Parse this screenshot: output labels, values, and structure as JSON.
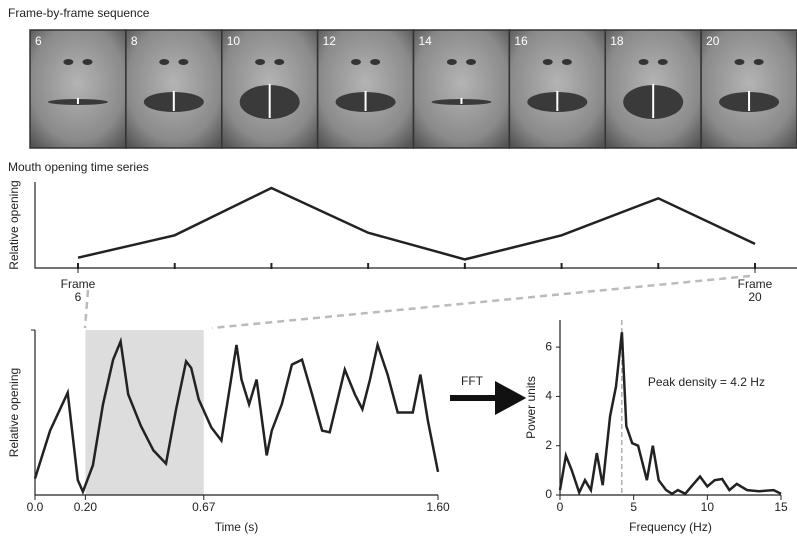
{
  "frames": {
    "title": "Frame-by-frame sequence",
    "labels": [
      "6",
      "8",
      "10",
      "12",
      "14",
      "16",
      "18",
      "20"
    ]
  },
  "chart_data": [
    {
      "type": "line",
      "title": "Mouth opening time series",
      "ylabel": "Relative opening",
      "x": [
        6,
        8,
        10,
        12,
        14,
        16,
        18,
        20
      ],
      "series": [
        {
          "color": "#222222",
          "values": [
            0.12,
            0.38,
            0.93,
            0.41,
            0.1,
            0.38,
            0.81,
            0.28
          ]
        }
      ],
      "ylim": [
        0,
        1
      ],
      "xticks": [
        {
          "value": 6,
          "label": "Frame 6"
        },
        {
          "value": 20,
          "label": "Frame 20"
        }
      ]
    },
    {
      "type": "line",
      "ylabel": "Relative opening",
      "xlabel": "Time (s)",
      "x": [
        0,
        0.06,
        0.13,
        0.17,
        0.19,
        0.23,
        0.27,
        0.31,
        0.34,
        0.37,
        0.42,
        0.47,
        0.52,
        0.56,
        0.6,
        0.62,
        0.65,
        0.7,
        0.74,
        0.8,
        0.82,
        0.85,
        0.88,
        0.92,
        0.94,
        0.98,
        1.02,
        1.06,
        1.1,
        1.14,
        1.17,
        1.23,
        1.27,
        1.3,
        1.33,
        1.36,
        1.4,
        1.44,
        1.48,
        1.5,
        1.53,
        1.56,
        1.6
      ],
      "series": [
        {
          "color": "#222222",
          "values": [
            0.1,
            0.39,
            0.62,
            0.09,
            0.02,
            0.18,
            0.55,
            0.82,
            0.93,
            0.61,
            0.42,
            0.27,
            0.19,
            0.52,
            0.81,
            0.77,
            0.58,
            0.41,
            0.33,
            0.91,
            0.7,
            0.55,
            0.7,
            0.24,
            0.39,
            0.55,
            0.79,
            0.82,
            0.61,
            0.39,
            0.38,
            0.76,
            0.61,
            0.52,
            0.7,
            0.91,
            0.73,
            0.5,
            0.5,
            0.5,
            0.73,
            0.45,
            0.14
          ]
        }
      ],
      "xlim": [
        0,
        1.6
      ],
      "ylim": [
        0,
        1
      ],
      "xticks": [
        {
          "value": 0,
          "label": "0.0"
        },
        {
          "value": 0.2,
          "label": "0.20"
        },
        {
          "value": 0.67,
          "label": "0.67"
        },
        {
          "value": 1.6,
          "label": "1.60"
        }
      ],
      "highlight": [
        0.2,
        0.67
      ],
      "highlight_color": "#dddddd"
    },
    {
      "type": "line",
      "ylabel": "Power units",
      "xlabel": "Frequency (Hz)",
      "connector": "FFT",
      "annotation": "Peak density = 4.2 Hz",
      "peak": 4.2,
      "x": [
        0,
        0.4,
        0.8,
        1.3,
        1.7,
        2.1,
        2.5,
        2.9,
        3.4,
        3.8,
        4.2,
        4.5,
        4.9,
        5.3,
        5.9,
        6.3,
        6.7,
        7.2,
        7.6,
        8.0,
        8.5,
        9.0,
        9.5,
        10.0,
        10.5,
        11.0,
        11.5,
        12.0,
        12.7,
        13.5,
        14.5,
        15.0
      ],
      "series": [
        {
          "color": "#222222",
          "values": [
            0.2,
            1.6,
            1.0,
            0.1,
            0.6,
            0.2,
            1.7,
            0.4,
            3.2,
            4.4,
            6.6,
            2.8,
            2.1,
            2.0,
            0.6,
            2.0,
            0.6,
            0.2,
            0.05,
            0.2,
            0.05,
            0.4,
            0.75,
            0.35,
            0.6,
            0.65,
            0.2,
            0.45,
            0.2,
            0.15,
            0.2,
            0.05
          ]
        }
      ],
      "xlim": [
        0,
        15
      ],
      "ylim": [
        0,
        7.1
      ],
      "xticks": [
        0,
        5,
        10,
        15
      ],
      "yticks": [
        0,
        2,
        4,
        6
      ]
    }
  ]
}
